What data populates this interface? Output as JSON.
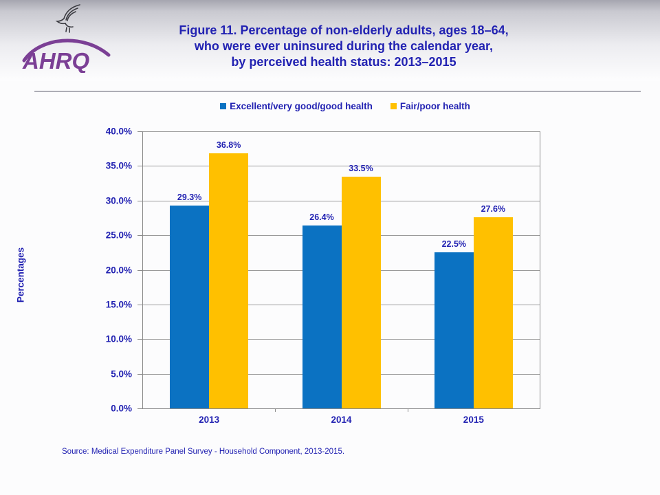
{
  "header": {
    "title_lines": [
      "Figure 11. Percentage of non-elderly adults, ages 18–64,",
      "who were ever uninsured during the calendar year,",
      "by perceived health status: 2013–2015"
    ],
    "logo": {
      "wordmark": "AHRQ",
      "eagle_icon": "hhs-eagle-icon",
      "wordmark_color": "#7B3F95"
    }
  },
  "chart_data": {
    "type": "bar",
    "title": "",
    "categories": [
      "2013",
      "2014",
      "2015"
    ],
    "series": [
      {
        "name": "Excellent/very good/good health",
        "color": "#0B72C2",
        "values": [
          29.3,
          26.4,
          22.5
        ]
      },
      {
        "name": "Fair/poor health",
        "color": "#FFC000",
        "values": [
          36.8,
          33.5,
          27.6
        ]
      }
    ],
    "xlabel": "",
    "ylabel": "Percentages",
    "ylim": [
      0,
      40
    ],
    "ytick_step": 5,
    "ytick_labels": [
      "0.0%",
      "5.0%",
      "10.0%",
      "15.0%",
      "20.0%",
      "25.0%",
      "30.0%",
      "35.0%",
      "40.0%"
    ],
    "grid": true,
    "legend_position": "top-center",
    "data_labels": [
      "29.3%",
      "26.4%",
      "22.5%",
      "36.8%",
      "33.5%",
      "27.6%"
    ]
  },
  "footer": {
    "source": "Source: Medical Expenditure Panel Survey - Household Component, 2013-2015."
  },
  "colors": {
    "text_blue": "#2222B2",
    "axis_gray": "#8a8a8a",
    "grid_gray": "#9a9a9a"
  }
}
